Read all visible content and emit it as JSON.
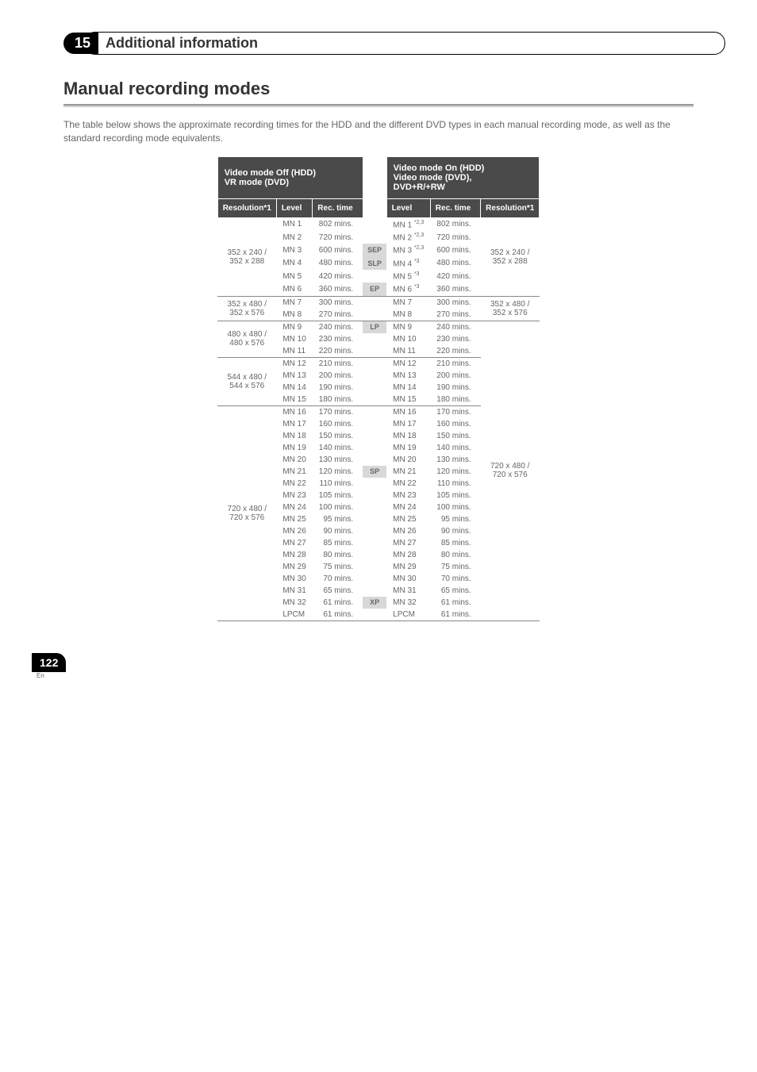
{
  "header": {
    "num": "15",
    "title": "Additional information"
  },
  "heading": "Manual recording modes",
  "intro": "The table below shows the approximate recording times for the HDD and the different DVD types in each manual recording mode, as well as the standard recording mode equivalents.",
  "leftGroup": "Video mode Off (HDD)\nVR mode (DVD)",
  "rightGroup": "Video mode On (HDD)\nVideo mode (DVD),\nDVD+R/+RW",
  "cols": {
    "resL": "Resolution*1",
    "lvlL": "Level",
    "recL": "Rec. time",
    "lvlR": "Level",
    "recR": "Rec. time",
    "resR": "Resolution*1"
  },
  "blocks": [
    {
      "resL": "352 x 240 /\n352 x 288",
      "resR": "352 x 240 /\n352 x 288",
      "rows": [
        {
          "lvl": "MN 1",
          "rec": "802 mins.",
          "std": "",
          "lvlR": "MN 1",
          "supR": "*2,3",
          "recR": "802 mins."
        },
        {
          "lvl": "MN 2",
          "rec": "720 mins.",
          "std": "",
          "lvlR": "MN 2",
          "supR": "*2,3",
          "recR": "720 mins."
        },
        {
          "lvl": "MN 3",
          "rec": "600 mins.",
          "std": "SEP",
          "lvlR": "MN 3",
          "supR": "*2,3",
          "recR": "600 mins."
        },
        {
          "lvl": "MN 4",
          "rec": "480 mins.",
          "std": "SLP",
          "lvlR": "MN 4",
          "supR": "*3",
          "recR": "480 mins."
        },
        {
          "lvl": "MN 5",
          "rec": "420 mins.",
          "std": "",
          "lvlR": "MN 5",
          "supR": "*3",
          "recR": "420 mins."
        },
        {
          "lvl": "MN 6",
          "rec": "360 mins.",
          "std": "EP",
          "lvlR": "MN 6",
          "supR": "*3",
          "recR": "360 mins."
        }
      ]
    },
    {
      "resL": "352 x 480 /\n352 x 576",
      "resR": "352 x 480 /\n352 x 576",
      "rows": [
        {
          "lvl": "MN 7",
          "rec": "300 mins.",
          "std": "",
          "lvlR": "MN 7",
          "recR": "300 mins."
        },
        {
          "lvl": "MN 8",
          "rec": "270 mins.",
          "std": "",
          "lvlR": "MN 8",
          "recR": "270 mins."
        }
      ]
    },
    {
      "resL": "480 x 480 /\n480 x 576",
      "rows": [
        {
          "lvl": "MN 9",
          "rec": "240 mins.",
          "std": "LP",
          "lvlR": "MN 9",
          "recR": "240 mins."
        },
        {
          "lvl": "MN 10",
          "rec": "230 mins.",
          "std": "",
          "lvlR": "MN 10",
          "recR": "230 mins."
        },
        {
          "lvl": "MN 11",
          "rec": "220 mins.",
          "std": "",
          "lvlR": "MN 11",
          "recR": "220 mins."
        }
      ]
    },
    {
      "resL": "544 x 480 /\n544 x 576",
      "rows": [
        {
          "lvl": "MN 12",
          "rec": "210 mins.",
          "std": "",
          "lvlR": "MN 12",
          "recR": "210 mins."
        },
        {
          "lvl": "MN 13",
          "rec": "200 mins.",
          "std": "",
          "lvlR": "MN 13",
          "recR": "200 mins."
        },
        {
          "lvl": "MN 14",
          "rec": "190 mins.",
          "std": "",
          "lvlR": "MN 14",
          "recR": "190 mins."
        },
        {
          "lvl": "MN 15",
          "rec": "180 mins.",
          "std": "",
          "lvlR": "MN 15",
          "recR": "180 mins."
        }
      ]
    },
    {
      "resL": "720 x 480 /\n720 x 576",
      "resR": "720 x 480 /\n720 x 576",
      "rows": [
        {
          "lvl": "MN 16",
          "rec": "170 mins.",
          "std": "",
          "lvlR": "MN 16",
          "recR": "170 mins."
        },
        {
          "lvl": "MN 17",
          "rec": "160 mins.",
          "std": "",
          "lvlR": "MN 17",
          "recR": "160 mins."
        },
        {
          "lvl": "MN 18",
          "rec": "150 mins.",
          "std": "",
          "lvlR": "MN 18",
          "recR": "150 mins."
        },
        {
          "lvl": "MN 19",
          "rec": "140 mins.",
          "std": "",
          "lvlR": "MN 19",
          "recR": "140 mins."
        },
        {
          "lvl": "MN 20",
          "rec": "130 mins.",
          "std": "",
          "lvlR": "MN 20",
          "recR": "130 mins."
        },
        {
          "lvl": "MN 21",
          "rec": "120 mins.",
          "std": "SP",
          "lvlR": "MN 21",
          "recR": "120 mins."
        },
        {
          "lvl": "MN 22",
          "rec": "110 mins.",
          "std": "",
          "lvlR": "MN 22",
          "recR": "110 mins."
        },
        {
          "lvl": "MN 23",
          "rec": "105 mins.",
          "std": "",
          "lvlR": "MN 23",
          "recR": "105 mins."
        },
        {
          "lvl": "MN 24",
          "rec": "100 mins.",
          "std": "",
          "lvlR": "MN 24",
          "recR": "100 mins."
        },
        {
          "lvl": "MN 25",
          "rec": "95 mins.",
          "std": "",
          "lvlR": "MN 25",
          "recR": "95 mins."
        },
        {
          "lvl": "MN 26",
          "rec": "90 mins.",
          "std": "",
          "lvlR": "MN 26",
          "recR": "90 mins."
        },
        {
          "lvl": "MN 27",
          "rec": "85 mins.",
          "std": "",
          "lvlR": "MN 27",
          "recR": "85 mins."
        },
        {
          "lvl": "MN 28",
          "rec": "80 mins.",
          "std": "",
          "lvlR": "MN 28",
          "recR": "80 mins."
        },
        {
          "lvl": "MN 29",
          "rec": "75 mins.",
          "std": "",
          "lvlR": "MN 29",
          "recR": "75 mins."
        },
        {
          "lvl": "MN 30",
          "rec": "70 mins.",
          "std": "",
          "lvlR": "MN 30",
          "recR": "70 mins."
        },
        {
          "lvl": "MN 31",
          "rec": "65 mins.",
          "std": "",
          "lvlR": "MN 31",
          "recR": "65 mins."
        },
        {
          "lvl": "MN 32",
          "rec": "61 mins.",
          "std": "XP",
          "lvlR": "MN 32",
          "recR": "61 mins."
        },
        {
          "lvl": "LPCM",
          "rec": "61 mins.",
          "std": "",
          "lvlR": "LPCM",
          "recR": "61 mins."
        }
      ]
    }
  ],
  "page": {
    "num": "122",
    "lang": "En"
  }
}
